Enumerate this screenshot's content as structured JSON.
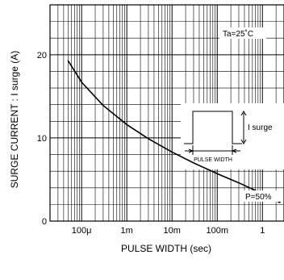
{
  "chart_data": {
    "type": "line",
    "title": "",
    "xlabel": "PULSE WIDTH (sec)",
    "ylabel": "SURGE CURRENT : I surge (A)",
    "x_scale": "log",
    "xlim": [
      2e-05,
      3
    ],
    "ylim": [
      0,
      26
    ],
    "y_ticks": [
      {
        "value": 0,
        "label": "0"
      },
      {
        "value": 10,
        "label": "10"
      },
      {
        "value": 20,
        "label": "20"
      }
    ],
    "x_ticks": [
      {
        "value": 0.0001,
        "label": "100μ"
      },
      {
        "value": 0.001,
        "label": "1m"
      },
      {
        "value": 0.01,
        "label": "10m"
      },
      {
        "value": 0.1,
        "label": "100m"
      },
      {
        "value": 1,
        "label": "1"
      }
    ],
    "grid": true,
    "series": [
      {
        "name": "",
        "x": [
          5e-05,
          0.0001,
          0.0003,
          0.001,
          0.003,
          0.01,
          0.03,
          0.1,
          0.3,
          1,
          2.5
        ],
        "y": [
          19.3,
          16.7,
          13.9,
          11.6,
          9.9,
          8.3,
          7.0,
          5.7,
          4.6,
          3.3,
          2.2
        ]
      }
    ],
    "annotations": {
      "temperature": "Ta=25˚C",
      "duty": "P=50%",
      "inset_current_label": "I surge",
      "inset_width_label": "PULSE WIDTH"
    }
  }
}
